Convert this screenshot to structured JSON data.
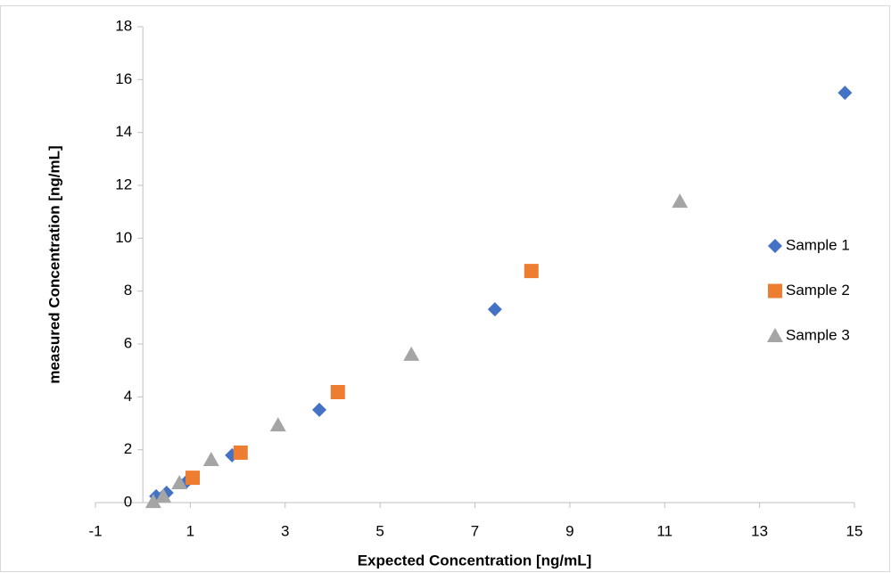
{
  "chart_data": {
    "type": "scatter",
    "x_label": "Expected  Concentration [ng/mL]",
    "y_label": "measured Concentration [ng/mL]",
    "xlim": [
      -1,
      15
    ],
    "xticks": [
      -1,
      1,
      3,
      5,
      7,
      9,
      11,
      13,
      15
    ],
    "ylim": [
      0,
      18
    ],
    "yticks": [
      0,
      2,
      4,
      6,
      8,
      10,
      12,
      14,
      16,
      18
    ],
    "grid": false,
    "legend": "right",
    "series": [
      {
        "name": "Sample 1",
        "color": "#4472c4",
        "marker": "diamond",
        "x": [
          0.28,
          0.5,
          0.93,
          1.88,
          3.72,
          7.42,
          14.8
        ],
        "values": [
          0.24,
          0.37,
          0.81,
          1.79,
          3.51,
          7.31,
          15.5
        ]
      },
      {
        "name": "Sample 2",
        "color": "#ed7d31",
        "marker": "square",
        "x": [
          1.05,
          2.06,
          4.11,
          8.19
        ],
        "values": [
          0.94,
          1.89,
          4.18,
          8.76
        ]
      },
      {
        "name": "Sample 3",
        "color": "#a5a5a5",
        "marker": "triangle",
        "x": [
          0.22,
          0.43,
          0.77,
          1.44,
          2.85,
          5.66,
          11.32
        ],
        "values": [
          0.03,
          0.24,
          0.74,
          1.62,
          2.93,
          5.6,
          11.39
        ]
      }
    ]
  }
}
